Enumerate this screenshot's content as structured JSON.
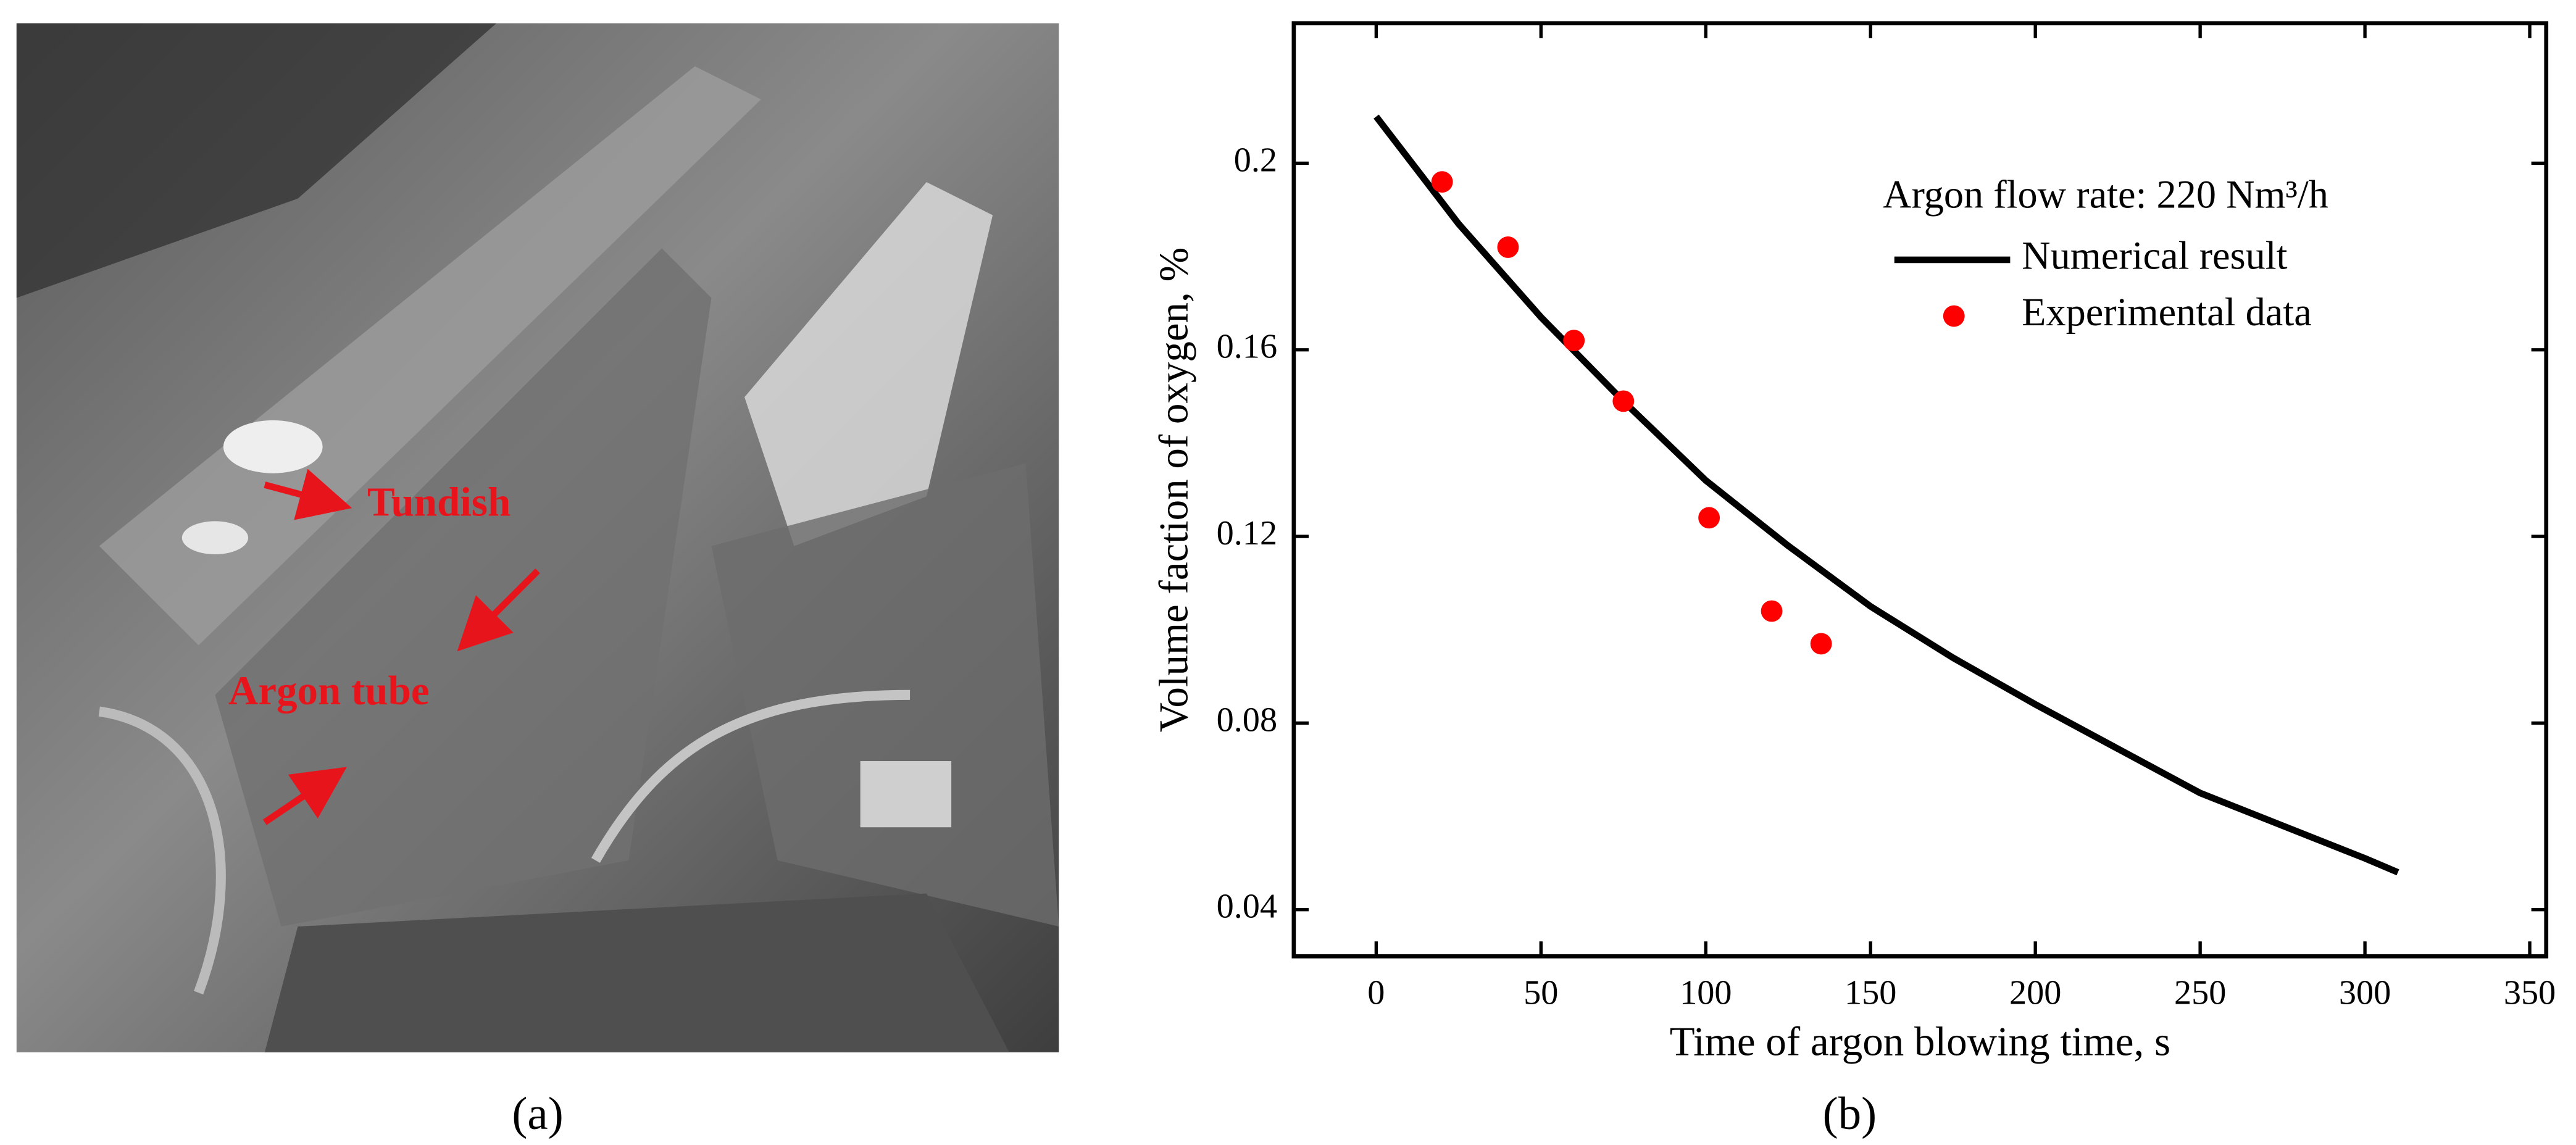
{
  "panel_a": {
    "labels": [
      "Tundish",
      "Argon tube"
    ],
    "caption": "(a)"
  },
  "chart_data": {
    "type": "line_scatter",
    "caption": "(b)",
    "x_label": "Time of argon blowing time, s",
    "y_label": "Volume faction of oxygen, %",
    "legend_title": "Argon flow rate: 220 Nm³/h",
    "xlim": [
      -25,
      355
    ],
    "xticks": [
      0,
      50,
      100,
      150,
      200,
      250,
      300,
      350
    ],
    "ylim": [
      0.03,
      0.23
    ],
    "yticks": [
      0.04,
      0.08,
      0.12,
      0.16,
      0.2
    ],
    "series": [
      {
        "name": "Numerical result",
        "kind": "line",
        "color": "#000000",
        "x": [
          0,
          25,
          50,
          75,
          100,
          125,
          150,
          175,
          200,
          250,
          300,
          310
        ],
        "values": [
          0.21,
          0.187,
          0.167,
          0.149,
          0.132,
          0.118,
          0.105,
          0.094,
          0.084,
          0.065,
          0.051,
          0.048
        ]
      },
      {
        "name": "Experimental data",
        "kind": "scatter",
        "color": "#ff0000",
        "x": [
          20,
          40,
          60,
          75,
          101,
          120,
          135
        ],
        "values": [
          0.196,
          0.182,
          0.162,
          0.149,
          0.124,
          0.104,
          0.097
        ]
      }
    ]
  }
}
